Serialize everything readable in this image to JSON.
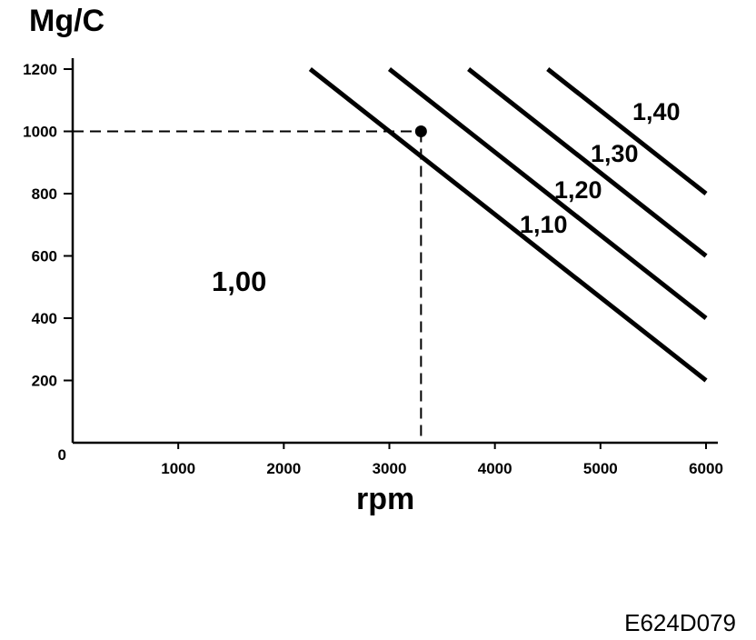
{
  "figure_id": "E624D079",
  "chart_data": {
    "type": "line",
    "ylabel": "Mg/C",
    "xlabel": "rpm",
    "origin_label": "0",
    "xlim": [
      0,
      6000
    ],
    "ylim": [
      0,
      1200
    ],
    "x_ticks": [
      1000,
      2000,
      3000,
      4000,
      5000,
      6000
    ],
    "y_ticks": [
      200,
      400,
      600,
      800,
      1000,
      1200
    ],
    "base_region_label": "1,00",
    "series": [
      {
        "name": "1,10",
        "x": [
          2250,
          6000
        ],
        "y": [
          1200,
          200
        ]
      },
      {
        "name": "1,20",
        "x": [
          3000,
          6000
        ],
        "y": [
          1200,
          400
        ]
      },
      {
        "name": "1,30",
        "x": [
          3750,
          6000
        ],
        "y": [
          1200,
          600
        ]
      },
      {
        "name": "1,40",
        "x": [
          4500,
          6000
        ],
        "y": [
          1200,
          800
        ]
      }
    ],
    "marker_point": {
      "x": 3300,
      "y": 1000
    },
    "grid": false,
    "legend": "none"
  }
}
